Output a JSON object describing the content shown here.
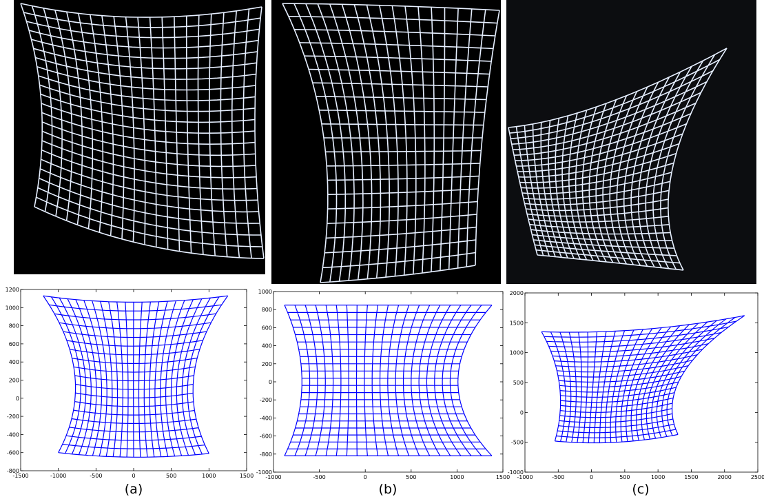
{
  "chart_data": [
    {
      "type": "mesh",
      "caption": "(a)",
      "xlim": [
        -1500,
        1500
      ],
      "ylim": [
        -800,
        1200
      ],
      "xticks": [
        -1500,
        -1000,
        -500,
        0,
        500,
        1000,
        1500
      ],
      "yticks": [
        -800,
        -600,
        -400,
        -200,
        0,
        200,
        400,
        600,
        800,
        1000,
        1200
      ],
      "mesh": {
        "color": "#0000ff",
        "rows": 18,
        "cols": 22,
        "top_left": [
          -1200,
          1130
        ],
        "top_mid": [
          0,
          1060
        ],
        "top_right": [
          1250,
          1130
        ],
        "bottom_left": [
          -1000,
          -600
        ],
        "bottom_mid": [
          0,
          -650
        ],
        "bottom_right": [
          1000,
          -610
        ],
        "left_mid": [
          -780,
          250
        ],
        "right_mid": [
          800,
          250
        ]
      }
    },
    {
      "type": "mesh",
      "caption": "(b)",
      "xlim": [
        -1000,
        1500
      ],
      "ylim": [
        -1000,
        1000
      ],
      "xticks": [
        -1000,
        -500,
        0,
        500,
        1000,
        1500
      ],
      "yticks": [
        -1000,
        -800,
        -600,
        -400,
        -200,
        0,
        200,
        400,
        600,
        800,
        1000
      ],
      "mesh": {
        "color": "#0000ff",
        "rows": 21,
        "cols": 20,
        "top_left": [
          -880,
          850
        ],
        "top_mid": [
          250,
          850
        ],
        "top_right": [
          1380,
          850
        ],
        "bottom_left": [
          -880,
          -820
        ],
        "bottom_mid": [
          250,
          -820
        ],
        "bottom_right": [
          1380,
          -820
        ],
        "left_mid": [
          -690,
          0
        ],
        "right_mid": [
          1010,
          0
        ]
      }
    },
    {
      "type": "mesh",
      "caption": "(c)",
      "xlim": [
        -1000,
        2500
      ],
      "ylim": [
        -1000,
        2000
      ],
      "xticks": [
        -1000,
        -500,
        0,
        500,
        1000,
        1500,
        2000,
        2500
      ],
      "yticks": [
        -1000,
        -500,
        0,
        500,
        1000,
        1500,
        2000
      ],
      "mesh": {
        "color": "#0000ff",
        "rows": 22,
        "cols": 22,
        "top_left": [
          -750,
          1350
        ],
        "top_mid": [
          775,
          1390
        ],
        "top_right": [
          2300,
          1620
        ],
        "bottom_left": [
          -550,
          -480
        ],
        "bottom_mid": [
          375,
          -500
        ],
        "bottom_right": [
          1300,
          -370
        ],
        "left_mid": [
          -480,
          450
        ],
        "right_mid": [
          1350,
          600
        ]
      }
    }
  ]
}
